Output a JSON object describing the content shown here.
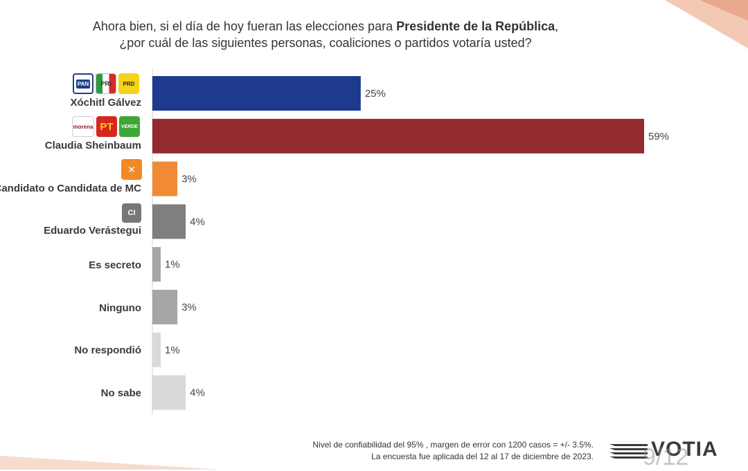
{
  "title": {
    "line1_pre": "Ahora bien, si el día de hoy fueran las elecciones para ",
    "line1_bold": "Presidente de la República",
    "line1_post": ",",
    "line2": "¿por cuál de las siguientes personas, coaliciones o partidos votaría usted?"
  },
  "logos": {
    "pan": "PAN",
    "pri": "PRI",
    "prd": "PRD",
    "morena": "morena",
    "pt": "PT",
    "verde": "VERDE",
    "mc": "✕",
    "ci": "CI"
  },
  "chart_data": {
    "type": "bar",
    "orientation": "horizontal",
    "categories": [
      "Xóchitl Gálvez",
      "Claudia Sheinbaum",
      "Candidato o Candidata de MC",
      "Eduardo Verástegui",
      "Es secreto",
      "Ninguno",
      "No respondió",
      "No sabe"
    ],
    "values": [
      25,
      59,
      3,
      4,
      1,
      3,
      1,
      4
    ],
    "value_labels": [
      "25%",
      "59%",
      "3%",
      "4%",
      "1%",
      "3%",
      "1%",
      "4%"
    ],
    "colors": [
      "#1d3a8e",
      "#922a30",
      "#f08a34",
      "#7f7f7f",
      "#a6a6a6",
      "#a6a6a6",
      "#d9d9d9",
      "#d9d9d9"
    ],
    "value_unit": "%",
    "grid": false,
    "legend": "none"
  },
  "footnote": {
    "line1": "Nivel de confiabilidad del 95% , margen de error  con 1200 casos = +/- 3.5%.",
    "line2": "La encuesta fue aplicada del 12 al 17 de diciembre de 2023."
  },
  "brand": "VOTIA",
  "page_number": "9/12"
}
